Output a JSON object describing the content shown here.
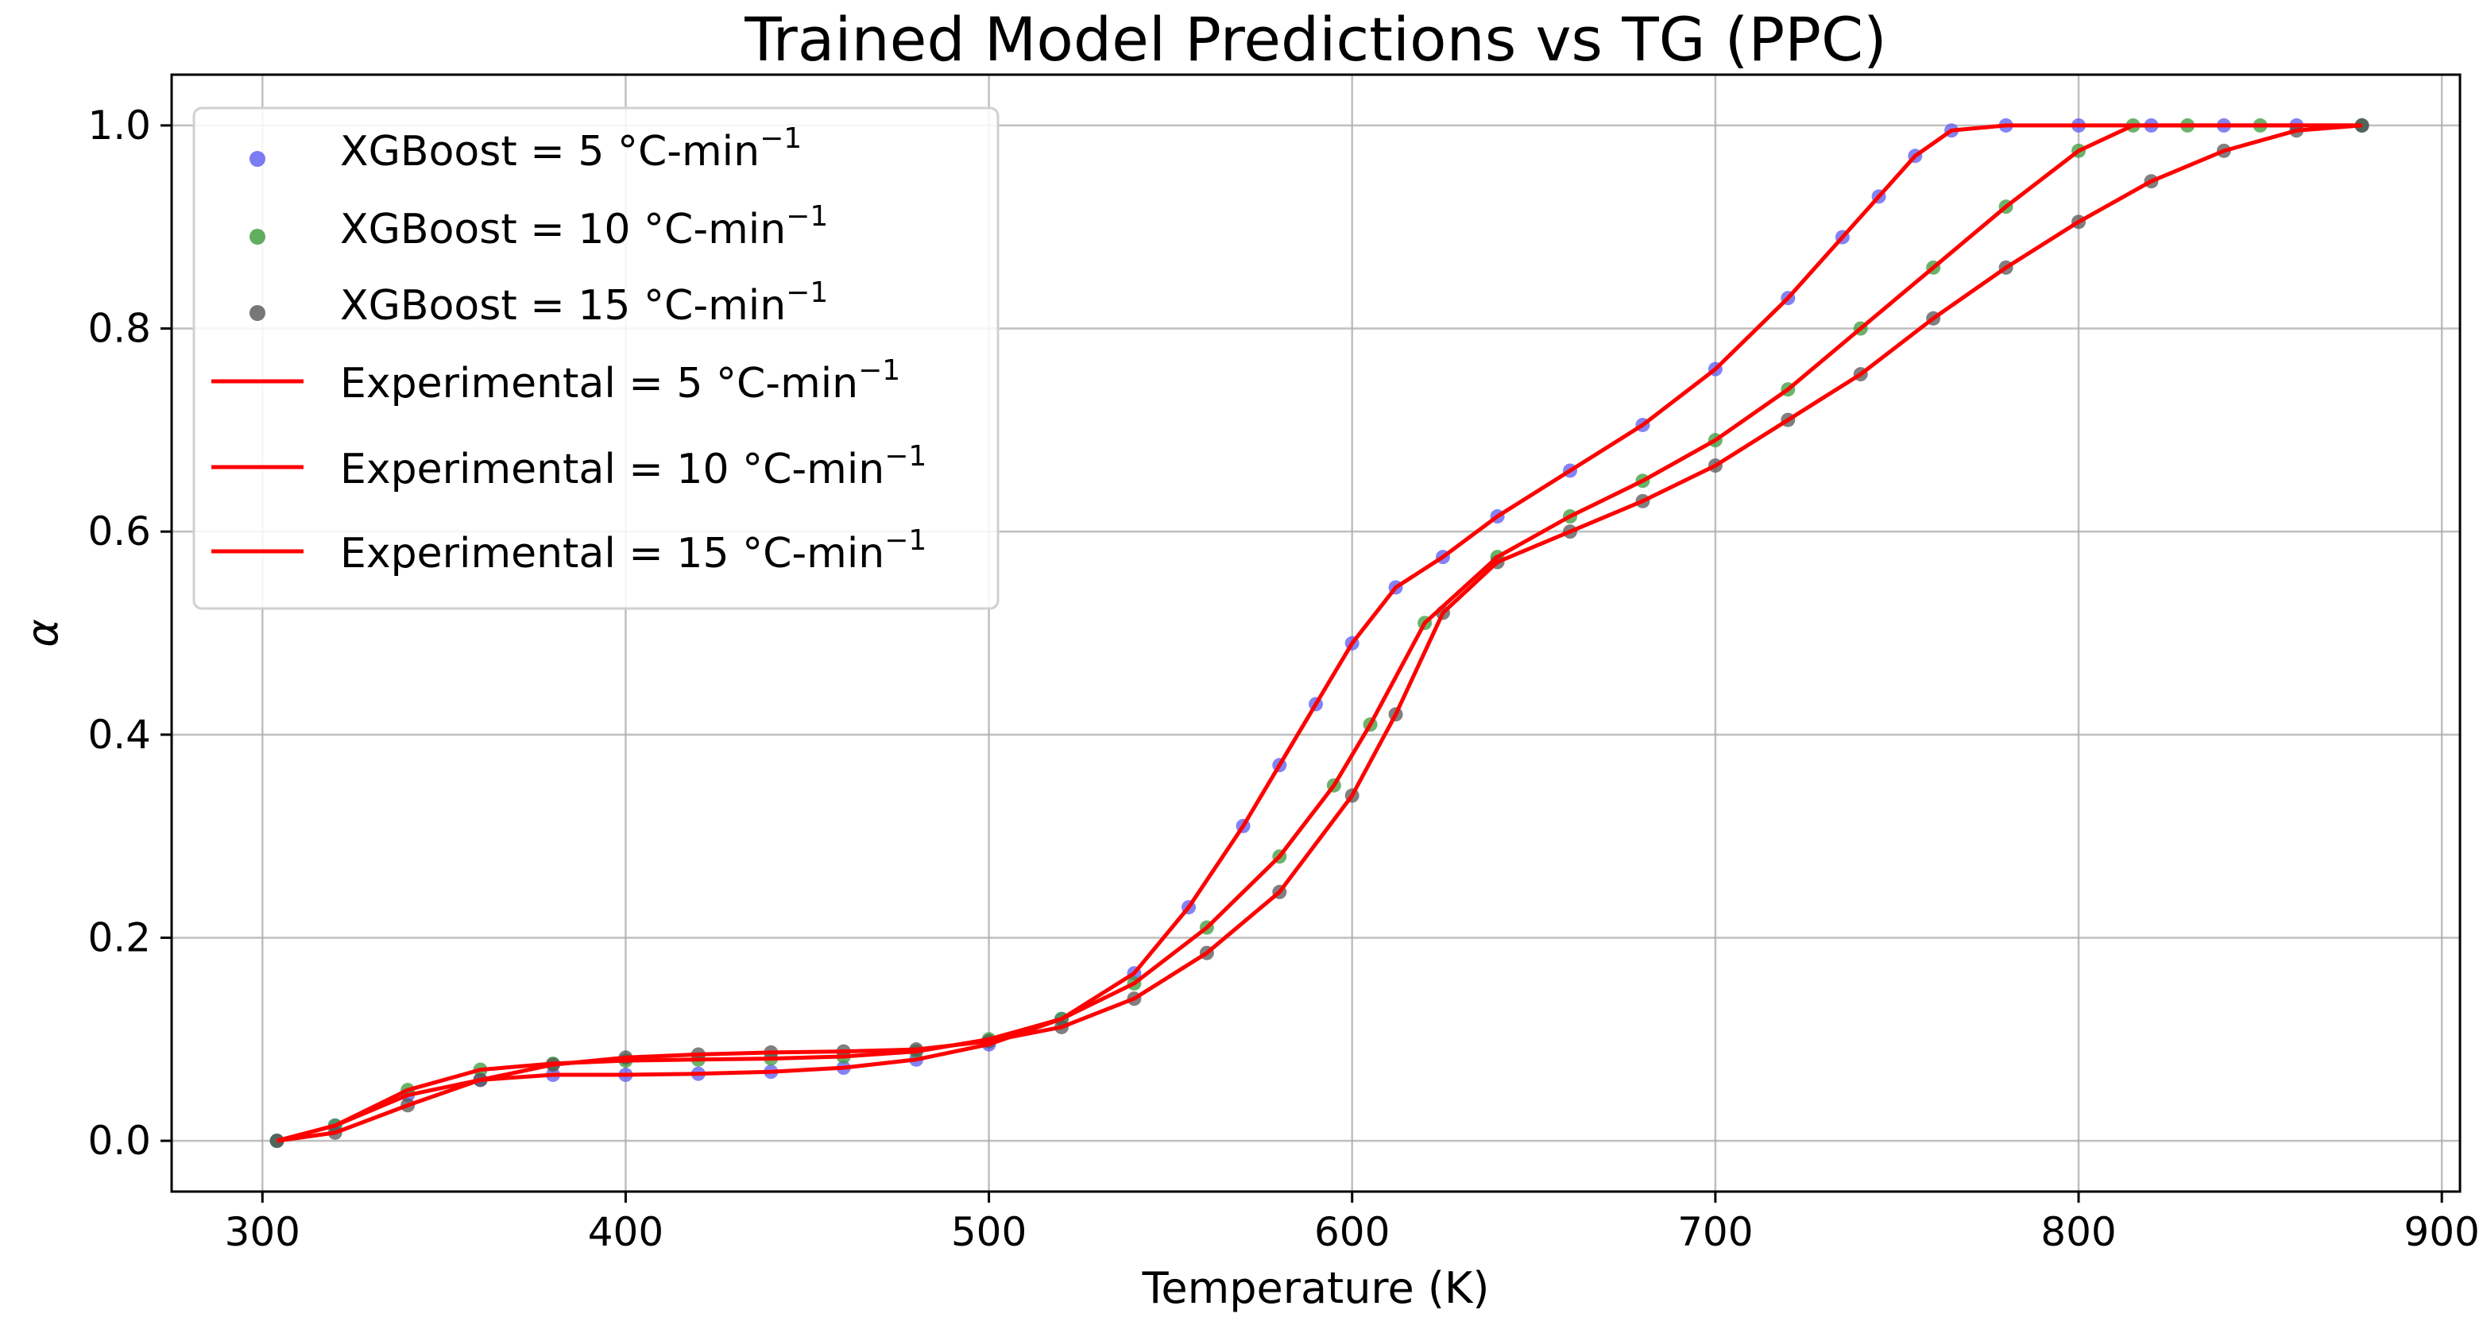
{
  "chart_data": {
    "type": "line",
    "title": "Trained Model Predictions vs TG (PPC)",
    "xlabel": "Temperature (K)",
    "ylabel": "α",
    "xlim": [
      275,
      905
    ],
    "ylim": [
      -0.05,
      1.05
    ],
    "grid": true,
    "legend_position": "top-left",
    "x_ticks": [
      300,
      400,
      500,
      600,
      700,
      800,
      900
    ],
    "y_ticks": [
      0.0,
      0.2,
      0.4,
      0.6,
      0.8,
      1.0
    ],
    "x_tick_labels": [
      "300",
      "400",
      "500",
      "600",
      "700",
      "800",
      "900"
    ],
    "y_tick_labels": [
      "0.0",
      "0.2",
      "0.4",
      "0.6",
      "0.8",
      "1.0"
    ],
    "series": [
      {
        "name": "XGBoost = 5 °C-min⁻¹",
        "kind": "scatter",
        "color": "#5a5af0",
        "x": [
          304,
          320,
          340,
          360,
          380,
          400,
          420,
          440,
          460,
          480,
          500,
          520,
          540,
          555,
          570,
          580,
          590,
          600,
          612,
          625,
          640,
          660,
          680,
          700,
          720,
          735,
          745,
          755,
          765,
          780,
          800,
          820,
          840,
          860,
          878
        ],
        "y": [
          0.0,
          0.015,
          0.045,
          0.06,
          0.065,
          0.065,
          0.066,
          0.068,
          0.072,
          0.08,
          0.095,
          0.12,
          0.165,
          0.23,
          0.31,
          0.37,
          0.43,
          0.49,
          0.545,
          0.575,
          0.615,
          0.66,
          0.705,
          0.76,
          0.83,
          0.89,
          0.93,
          0.97,
          0.995,
          1.0,
          1.0,
          1.0,
          1.0,
          1.0,
          1.0
        ]
      },
      {
        "name": "XGBoost = 10 °C-min⁻¹",
        "kind": "scatter",
        "color": "#3a9a3a",
        "x": [
          304,
          320,
          340,
          360,
          380,
          400,
          420,
          440,
          460,
          480,
          500,
          520,
          540,
          560,
          580,
          595,
          605,
          620,
          640,
          660,
          680,
          700,
          720,
          740,
          760,
          780,
          800,
          815,
          830,
          850,
          878
        ],
        "y": [
          0.0,
          0.015,
          0.05,
          0.07,
          0.076,
          0.079,
          0.08,
          0.081,
          0.083,
          0.088,
          0.1,
          0.12,
          0.155,
          0.21,
          0.28,
          0.35,
          0.41,
          0.51,
          0.575,
          0.615,
          0.65,
          0.69,
          0.74,
          0.8,
          0.86,
          0.92,
          0.975,
          1.0,
          1.0,
          1.0,
          1.0
        ]
      },
      {
        "name": "XGBoost = 15 °C-min⁻¹",
        "kind": "scatter",
        "color": "#555555",
        "x": [
          304,
          320,
          340,
          360,
          380,
          400,
          420,
          440,
          460,
          480,
          500,
          520,
          540,
          560,
          580,
          600,
          612,
          625,
          640,
          660,
          680,
          700,
          720,
          740,
          760,
          780,
          800,
          820,
          840,
          860,
          878
        ],
        "y": [
          0.0,
          0.008,
          0.035,
          0.06,
          0.075,
          0.082,
          0.085,
          0.087,
          0.088,
          0.09,
          0.098,
          0.112,
          0.14,
          0.185,
          0.245,
          0.34,
          0.42,
          0.52,
          0.57,
          0.6,
          0.63,
          0.665,
          0.71,
          0.755,
          0.81,
          0.86,
          0.905,
          0.945,
          0.975,
          0.995,
          1.0
        ]
      },
      {
        "name": "Experimental = 5 °C-min⁻¹",
        "kind": "line",
        "color": "#ff0000",
        "x": [
          304,
          320,
          340,
          360,
          380,
          400,
          420,
          440,
          460,
          480,
          500,
          520,
          540,
          555,
          570,
          580,
          590,
          600,
          612,
          625,
          640,
          660,
          680,
          700,
          720,
          735,
          745,
          755,
          765,
          780,
          800,
          820,
          840,
          860,
          878
        ],
        "y": [
          0.0,
          0.015,
          0.045,
          0.06,
          0.065,
          0.065,
          0.066,
          0.068,
          0.072,
          0.08,
          0.095,
          0.12,
          0.165,
          0.23,
          0.31,
          0.37,
          0.43,
          0.49,
          0.545,
          0.575,
          0.615,
          0.66,
          0.705,
          0.76,
          0.83,
          0.89,
          0.93,
          0.97,
          0.995,
          1.0,
          1.0,
          1.0,
          1.0,
          1.0,
          1.0
        ]
      },
      {
        "name": "Experimental = 10 °C-min⁻¹",
        "kind": "line",
        "color": "#ff0000",
        "x": [
          304,
          320,
          340,
          360,
          380,
          400,
          420,
          440,
          460,
          480,
          500,
          520,
          540,
          560,
          580,
          595,
          605,
          620,
          640,
          660,
          680,
          700,
          720,
          740,
          760,
          780,
          800,
          815,
          830,
          850,
          878
        ],
        "y": [
          0.0,
          0.015,
          0.05,
          0.07,
          0.076,
          0.079,
          0.08,
          0.081,
          0.083,
          0.088,
          0.1,
          0.12,
          0.155,
          0.21,
          0.28,
          0.35,
          0.41,
          0.51,
          0.575,
          0.615,
          0.65,
          0.69,
          0.74,
          0.8,
          0.86,
          0.92,
          0.975,
          1.0,
          1.0,
          1.0,
          1.0
        ]
      },
      {
        "name": "Experimental = 15 °C-min⁻¹",
        "kind": "line",
        "color": "#ff0000",
        "x": [
          304,
          320,
          340,
          360,
          380,
          400,
          420,
          440,
          460,
          480,
          500,
          520,
          540,
          560,
          580,
          600,
          612,
          625,
          640,
          660,
          680,
          700,
          720,
          740,
          760,
          780,
          800,
          820,
          840,
          860,
          878
        ],
        "y": [
          0.0,
          0.008,
          0.035,
          0.06,
          0.075,
          0.082,
          0.085,
          0.087,
          0.088,
          0.09,
          0.098,
          0.112,
          0.14,
          0.185,
          0.245,
          0.34,
          0.42,
          0.52,
          0.57,
          0.6,
          0.63,
          0.665,
          0.71,
          0.755,
          0.81,
          0.86,
          0.905,
          0.945,
          0.975,
          0.995,
          1.0
        ]
      }
    ],
    "legend": [
      {
        "prefix": "XGBoost = 5 °C-min",
        "sup": "−1",
        "kind": "scatter",
        "color": "#5a5af0"
      },
      {
        "prefix": "XGBoost = 10 °C-min",
        "sup": "−1",
        "kind": "scatter",
        "color": "#3a9a3a"
      },
      {
        "prefix": "XGBoost = 15 °C-min",
        "sup": "−1",
        "kind": "scatter",
        "color": "#555555"
      },
      {
        "prefix": "Experimental = 5 °C-min",
        "sup": "−1",
        "kind": "line",
        "color": "#ff0000"
      },
      {
        "prefix": "Experimental = 10 °C-min",
        "sup": "−1",
        "kind": "line",
        "color": "#ff0000"
      },
      {
        "prefix": "Experimental = 15 °C-min",
        "sup": "−1",
        "kind": "line",
        "color": "#ff0000"
      }
    ]
  }
}
